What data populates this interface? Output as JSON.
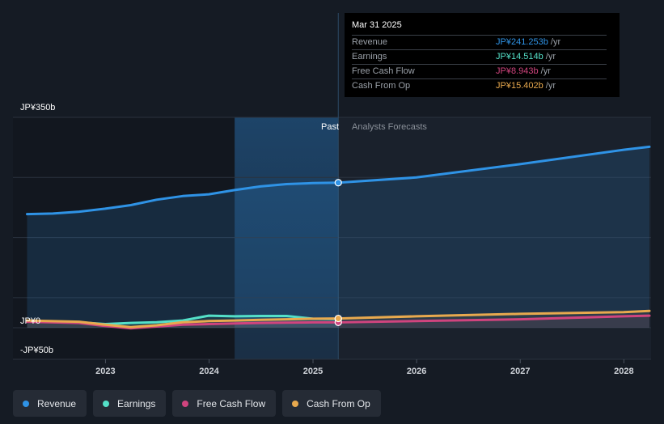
{
  "chart_data": {
    "type": "line",
    "y_axis_labels": [
      "JP¥350b",
      "JP¥0",
      "-JP¥50b"
    ],
    "ylim": [
      -50,
      350
    ],
    "x_ticks": [
      "2023",
      "2024",
      "2025",
      "2026",
      "2027",
      "2028"
    ],
    "divider_labels": {
      "past": "Past",
      "forecast": "Analysts Forecasts"
    },
    "series": [
      {
        "name": "Revenue",
        "color": "#2f93e6",
        "fill": true,
        "points": [
          [
            "2022-03-31",
            189
          ],
          [
            "2022-06-30",
            190
          ],
          [
            "2022-09-30",
            193
          ],
          [
            "2022-12-31",
            198
          ],
          [
            "2023-03-31",
            204
          ],
          [
            "2023-06-30",
            213
          ],
          [
            "2023-09-30",
            219
          ],
          [
            "2023-12-31",
            222
          ],
          [
            "2024-03-31",
            229
          ],
          [
            "2024-06-30",
            235
          ],
          [
            "2024-09-30",
            239
          ],
          [
            "2024-12-31",
            240.5
          ],
          [
            "2025-03-31",
            241.253
          ],
          [
            "2025-12-31",
            250
          ],
          [
            "2026-12-31",
            272
          ],
          [
            "2027-12-31",
            296
          ],
          [
            "2028-03-31",
            301
          ]
        ]
      },
      {
        "name": "Earnings",
        "color": "#54e0c8",
        "fill": false,
        "points": [
          [
            "2022-03-31",
            11
          ],
          [
            "2022-09-30",
            9
          ],
          [
            "2022-12-31",
            6
          ],
          [
            "2023-03-31",
            8
          ],
          [
            "2023-06-30",
            9
          ],
          [
            "2023-09-30",
            12
          ],
          [
            "2023-12-31",
            20
          ],
          [
            "2024-03-31",
            19
          ],
          [
            "2024-06-30",
            19.5
          ],
          [
            "2024-09-30",
            19.5
          ],
          [
            "2024-12-31",
            15
          ],
          [
            "2025-03-31",
            14.514
          ]
        ]
      },
      {
        "name": "Free Cash Flow",
        "color": "#d0447e",
        "fill": false,
        "points": [
          [
            "2022-03-31",
            10
          ],
          [
            "2022-09-30",
            8
          ],
          [
            "2022-12-31",
            3
          ],
          [
            "2023-03-31",
            -1
          ],
          [
            "2023-06-30",
            2
          ],
          [
            "2023-09-30",
            5
          ],
          [
            "2023-12-31",
            6
          ],
          [
            "2024-03-31",
            7
          ],
          [
            "2024-06-30",
            8
          ],
          [
            "2024-09-30",
            8.5
          ],
          [
            "2024-12-31",
            8.9
          ],
          [
            "2025-03-31",
            8.943
          ],
          [
            "2025-12-31",
            11
          ],
          [
            "2026-12-31",
            14
          ],
          [
            "2027-12-31",
            19
          ],
          [
            "2028-03-31",
            20
          ]
        ]
      },
      {
        "name": "Cash From Op",
        "color": "#e8a94e",
        "fill": false,
        "points": [
          [
            "2022-03-31",
            12
          ],
          [
            "2022-09-30",
            10
          ],
          [
            "2022-12-31",
            5
          ],
          [
            "2023-03-31",
            1
          ],
          [
            "2023-06-30",
            4
          ],
          [
            "2023-09-30",
            9
          ],
          [
            "2023-12-31",
            11
          ],
          [
            "2024-03-31",
            12
          ],
          [
            "2024-06-30",
            13
          ],
          [
            "2024-09-30",
            14
          ],
          [
            "2024-12-31",
            15
          ],
          [
            "2025-03-31",
            15.402
          ],
          [
            "2025-12-31",
            19
          ],
          [
            "2026-12-31",
            23
          ],
          [
            "2027-12-31",
            26
          ],
          [
            "2028-03-31",
            28
          ]
        ]
      }
    ],
    "x_range": [
      "2022-03-01",
      "2028-03-31"
    ],
    "past_shade_start": "2024-03-31",
    "divider_date": "2025-03-31"
  },
  "tooltip": {
    "date": "Mar 31 2025",
    "rows": [
      {
        "label": "Revenue",
        "value": "JP¥241.253b",
        "unit": " /yr",
        "color": "#2f93e6"
      },
      {
        "label": "Earnings",
        "value": "JP¥14.514b",
        "unit": " /yr",
        "color": "#54e0c8"
      },
      {
        "label": "Free Cash Flow",
        "value": "JP¥8.943b",
        "unit": " /yr",
        "color": "#d0447e"
      },
      {
        "label": "Cash From Op",
        "value": "JP¥15.402b",
        "unit": " /yr",
        "color": "#e8a94e"
      }
    ]
  },
  "legend": [
    {
      "label": "Revenue",
      "color": "#2f93e6"
    },
    {
      "label": "Earnings",
      "color": "#54e0c8"
    },
    {
      "label": "Free Cash Flow",
      "color": "#d0447e"
    },
    {
      "label": "Cash From Op",
      "color": "#e8a94e"
    }
  ]
}
